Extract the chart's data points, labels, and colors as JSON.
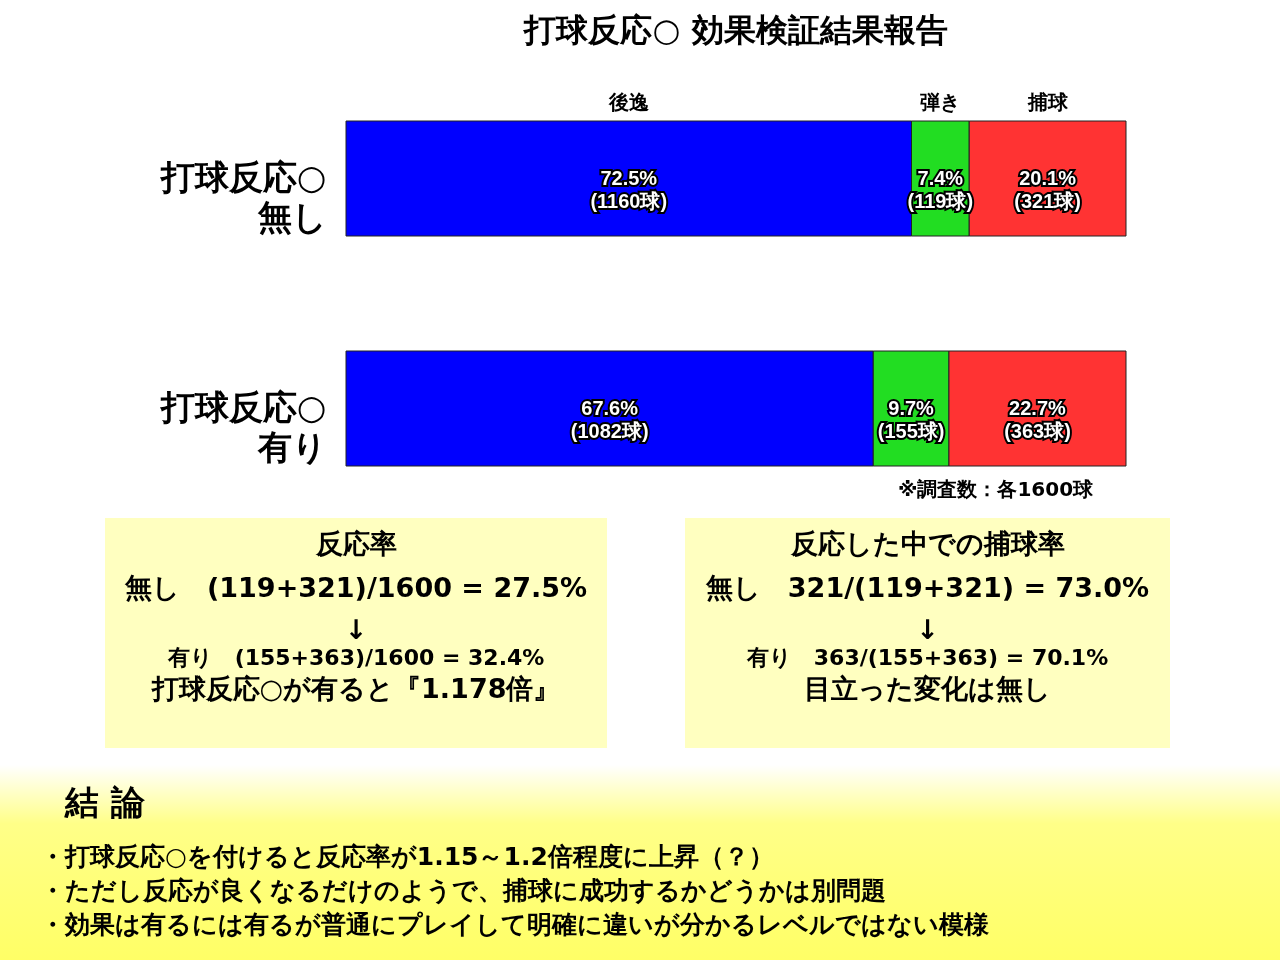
{
  "chart_data": {
    "type": "bar",
    "orientation": "horizontal",
    "stacked": true,
    "title": "打球反応○ 効果検証結果報告",
    "categories": [
      "打球反応○\n無し",
      "打球反応○\n有り"
    ],
    "xlim": [
      0,
      100
    ],
    "tick_labels": "y",
    "series": [
      {
        "name": "後逸",
        "color": "#0000ff",
        "values": [
          72.5,
          67.6
        ],
        "value_labels": [
          "72.5%\n(1160球)",
          "67.6%\n(1082球)"
        ]
      },
      {
        "name": "弾き",
        "color": "#22dd22",
        "values": [
          7.4,
          9.7
        ],
        "value_labels": [
          "7.4%\n(119球)",
          "9.7%\n(155球)"
        ]
      },
      {
        "name": "捕球",
        "color": "#ff3333",
        "values": [
          20.1,
          22.7
        ],
        "value_labels": [
          "20.1%\n(321球)",
          "22.7%\n(363球)"
        ]
      }
    ],
    "annotations": [
      "※調査数：各1600球",
      "反応率",
      "無し　(119+321)/1600 = 27.5%",
      "↓",
      "有り　(155+363)/1600 = 32.4%",
      "打球反応○が有ると『1.178倍』",
      "反応した中での捕球率",
      "無し　321/(119+321) = 73.0%",
      "↓",
      "有り　363/(155+363) = 70.1%",
      "目立った変化は無し",
      "結 論",
      "・打球反応○を付けると反応率が1.15～1.2倍程度に上昇（？）",
      "・ただし反応が良くなるだけのようで、捕球に成功するかどうかは別問題",
      "・効果は有るには有るが普通にプレイして明確に違いが分かるレベルではない模様"
    ]
  }
}
